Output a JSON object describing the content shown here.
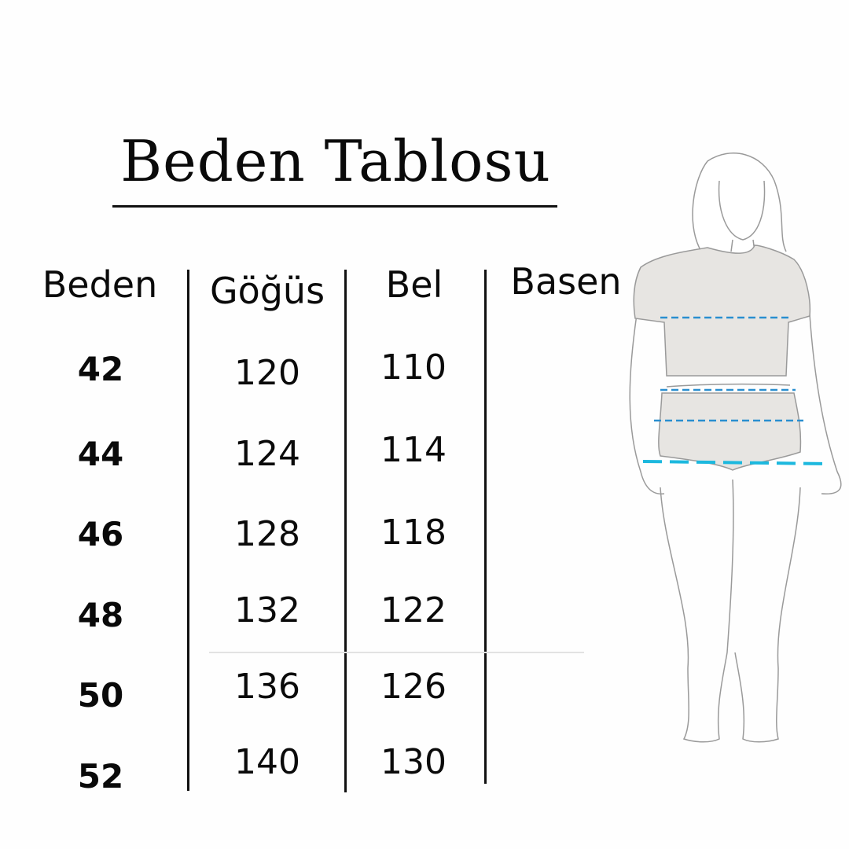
{
  "title": "Beden Tablosu",
  "table": {
    "headers": [
      "Beden",
      "Göğüs",
      "Bel",
      "Basen"
    ],
    "rows": [
      {
        "beden": "42",
        "gogus": "120",
        "bel": "110",
        "basen": ""
      },
      {
        "beden": "44",
        "gogus": "124",
        "bel": "114",
        "basen": ""
      },
      {
        "beden": "46",
        "gogus": "128",
        "bel": "118",
        "basen": ""
      },
      {
        "beden": "48",
        "gogus": "132",
        "bel": "122",
        "basen": ""
      },
      {
        "beden": "50",
        "gogus": "136",
        "bel": "126",
        "basen": ""
      },
      {
        "beden": "52",
        "gogus": "140",
        "bel": "130",
        "basen": ""
      }
    ]
  },
  "figure": {
    "icon": "body-measurement-figure",
    "measure_line_colors": [
      "#2a8fd0",
      "#1cb8de"
    ]
  }
}
